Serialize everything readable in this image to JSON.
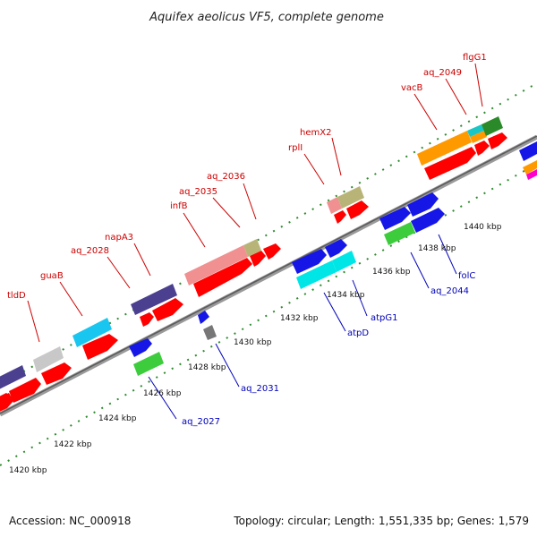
{
  "title": "Aquifex aeolicus VF5, complete genome",
  "footer": {
    "accession": "Accession: NC_000918",
    "summary": "Topology: circular; Length: 1,551,335 bp; Genes: 1,579"
  },
  "kbp_labels": [
    "1420 kbp",
    "1422 kbp",
    "1424 kbp",
    "1426 kbp",
    "1428 kbp",
    "1430 kbp",
    "1432 kbp",
    "1434 kbp",
    "1436 kbp",
    "1438 kbp",
    "1440 kbp"
  ],
  "top_gene_labels": [
    "tldD",
    "guaB",
    "aq_2028",
    "napA3",
    "infB",
    "aq_2035",
    "aq_2036",
    "rplI",
    "hemX2",
    "vacB",
    "aq_2049",
    "flgG1"
  ],
  "bottom_gene_labels": [
    "aq_2027",
    "aq_2031",
    "atpD",
    "atpG1",
    "aq_2044",
    "folC"
  ],
  "colors": {
    "red": "#ff0000",
    "navy": "#4b3f8f",
    "cyan": "#19c6f0",
    "silver": "#c8c8c8",
    "salmon": "#f09090",
    "khaki": "#b8b478",
    "orange": "#ff9900",
    "teal": "#19c6c6",
    "darkgreen": "#2a8a2a",
    "blue": "#1616e6",
    "green": "#3ccc3c",
    "aqua": "#00e6e6",
    "grey": "#777777",
    "label_red": "#cc0000",
    "label_blue": "#0000bb"
  }
}
